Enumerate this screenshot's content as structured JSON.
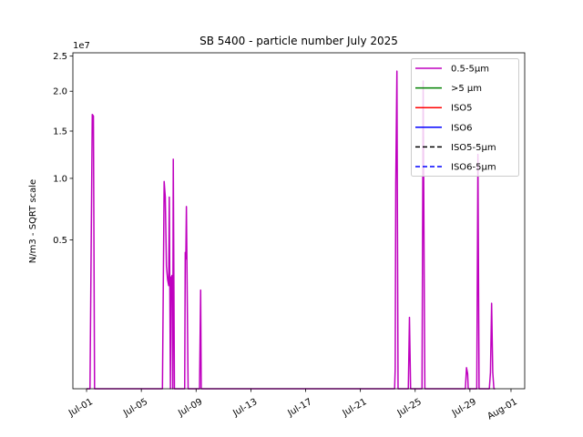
{
  "chart_data": {
    "type": "line",
    "title": "SB 5400 - particle number July 2025",
    "ylabel": "N/m3 - SQRT scale",
    "xlabel": "",
    "y_scale": "sqrt",
    "y_offset_text": "1e7",
    "ylim": [
      0,
      25500000
    ],
    "xlim": [
      "2025-06-30T00:00",
      "2025-08-02T00:00"
    ],
    "y_ticks": [
      0.5,
      1.0,
      1.5,
      2.0,
      2.5
    ],
    "x_ticks": [
      "2025-07-01",
      "2025-07-05",
      "2025-07-09",
      "2025-07-13",
      "2025-07-17",
      "2025-07-21",
      "2025-07-25",
      "2025-07-29",
      "2025-08-01"
    ],
    "x_tick_labels": [
      "Jul-01",
      "Jul-05",
      "Jul-09",
      "Jul-13",
      "Jul-17",
      "Jul-21",
      "Jul-25",
      "Jul-29",
      "Aug-01"
    ],
    "legend_position": "upper right",
    "grid": false,
    "series": [
      {
        "name": "0.5-5µm",
        "color": "#bf00bf",
        "style": "solid",
        "points": [
          [
            "2025-07-01T00:00",
            0
          ],
          [
            "2025-07-01T06:00",
            0
          ],
          [
            "2025-07-01T10:00",
            17000000
          ],
          [
            "2025-07-01T12:00",
            16800000
          ],
          [
            "2025-07-01T14:00",
            0
          ],
          [
            "2025-07-06T13:00",
            0
          ],
          [
            "2025-07-06T16:00",
            9700000
          ],
          [
            "2025-07-06T18:00",
            8300000
          ],
          [
            "2025-07-06T20:00",
            3400000
          ],
          [
            "2025-07-06T22:00",
            2700000
          ],
          [
            "2025-07-07T00:00",
            2400000
          ],
          [
            "2025-07-07T01:00",
            8300000
          ],
          [
            "2025-07-07T03:00",
            0
          ],
          [
            "2025-07-07T04:00",
            2800000
          ],
          [
            "2025-07-07T06:00",
            2900000
          ],
          [
            "2025-07-07T07:00",
            0
          ],
          [
            "2025-07-07T08:00",
            11900000
          ],
          [
            "2025-07-07T10:00",
            0
          ],
          [
            "2025-07-08T04:00",
            0
          ],
          [
            "2025-07-08T05:00",
            4200000
          ],
          [
            "2025-07-08T06:00",
            3800000
          ],
          [
            "2025-07-08T07:00",
            7500000
          ],
          [
            "2025-07-08T08:00",
            3300000
          ],
          [
            "2025-07-08T10:00",
            0
          ],
          [
            "2025-07-09T06:00",
            0
          ],
          [
            "2025-07-09T08:00",
            2200000
          ],
          [
            "2025-07-09T09:00",
            0
          ],
          [
            "2025-07-23T12:00",
            0
          ],
          [
            "2025-07-23T13:00",
            90000
          ],
          [
            "2025-07-23T14:00",
            9600000
          ],
          [
            "2025-07-23T16:00",
            22800000
          ],
          [
            "2025-07-23T18:00",
            0
          ],
          [
            "2025-07-24T12:00",
            0
          ],
          [
            "2025-07-24T14:00",
            1150000
          ],
          [
            "2025-07-24T16:00",
            0
          ],
          [
            "2025-07-25T12:00",
            0
          ],
          [
            "2025-07-25T14:00",
            21400000
          ],
          [
            "2025-07-25T15:00",
            9200000
          ],
          [
            "2025-07-25T16:00",
            1900000
          ],
          [
            "2025-07-25T17:00",
            0
          ],
          [
            "2025-07-28T16:00",
            0
          ],
          [
            "2025-07-28T18:00",
            100000
          ],
          [
            "2025-07-28T20:00",
            50000
          ],
          [
            "2025-07-28T21:00",
            0
          ],
          [
            "2025-07-29T12:00",
            0
          ],
          [
            "2025-07-29T14:00",
            12400000
          ],
          [
            "2025-07-29T16:00",
            0
          ],
          [
            "2025-07-30T10:00",
            0
          ],
          [
            "2025-07-30T12:00",
            60000
          ],
          [
            "2025-07-30T14:00",
            1650000
          ],
          [
            "2025-07-30T16:00",
            60000
          ],
          [
            "2025-07-30T18:00",
            0
          ],
          [
            "2025-07-30T20:00",
            0
          ]
        ]
      },
      {
        "name": ">5 µm",
        "color": "#008000",
        "style": "solid",
        "points": []
      },
      {
        "name": "ISO5",
        "color": "#ff0000",
        "style": "solid",
        "points": []
      },
      {
        "name": "ISO6",
        "color": "#0000ff",
        "style": "solid",
        "points": []
      },
      {
        "name": "ISO5-5µm",
        "color": "#000000",
        "style": "dashed",
        "points": []
      },
      {
        "name": "ISO6-5µm",
        "color": "#0000ff",
        "style": "dashed",
        "points": []
      }
    ]
  }
}
